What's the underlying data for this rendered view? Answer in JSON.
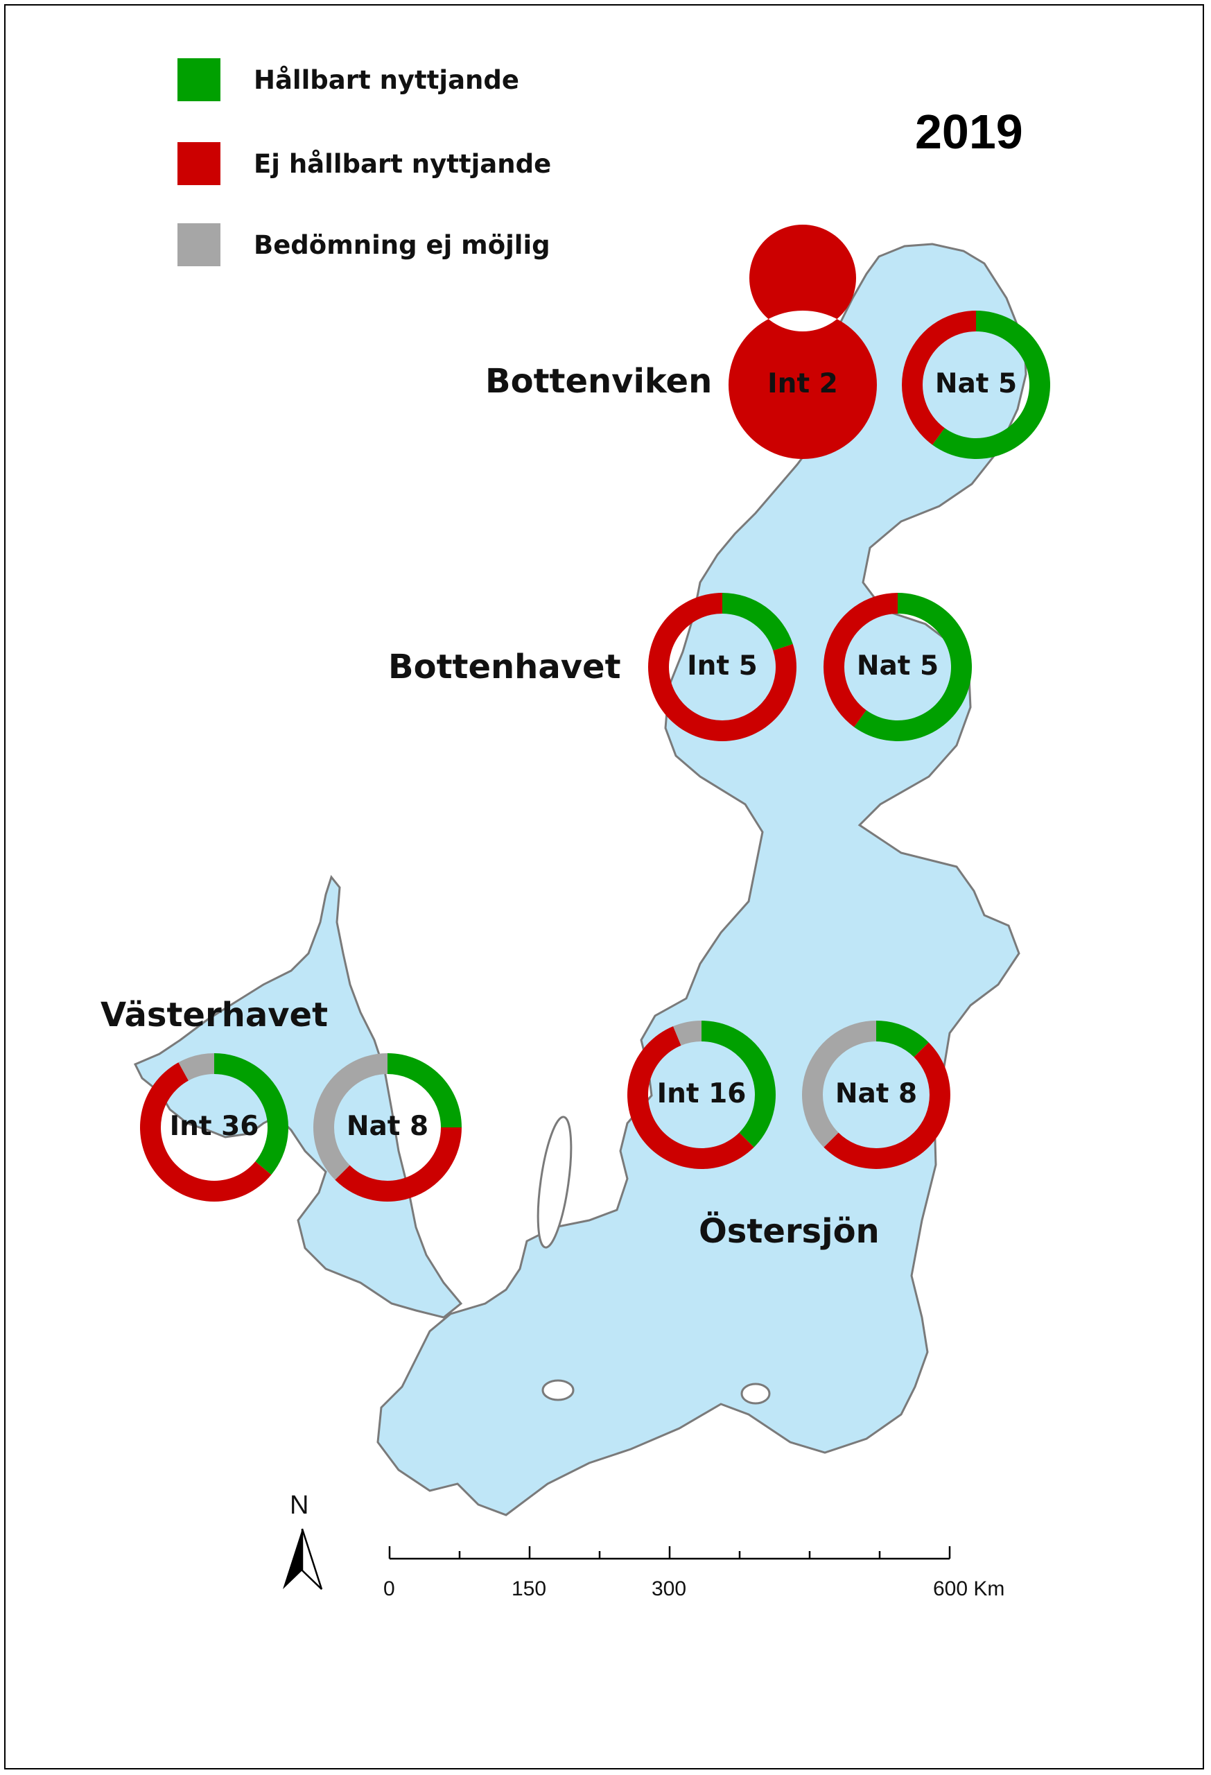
{
  "year": "2019",
  "legend": [
    {
      "label": "Hållbart nyttjande",
      "color": "#00a000"
    },
    {
      "label": "Ej hållbart nyttjande",
      "color": "#cc0000"
    },
    {
      "label": "Bedömning ej möjlig",
      "color": "#a6a6a6"
    }
  ],
  "colors": {
    "water": "#bfe6f7",
    "coast": "#7a7a7a",
    "sustainable": "#00a000",
    "unsustainable": "#cc0000",
    "not_assessed": "#a6a6a6"
  },
  "regions": {
    "bottenviken": "Bottenviken",
    "bottenhavet": "Bottenhavet",
    "vasterhavet": "Västerhavet",
    "ostersjon": "Östersjön"
  },
  "charts": [
    {
      "id": "bv-int",
      "label": "Int 2",
      "sustainable": 0.0,
      "unsustainable": 1.0,
      "not_assessed": 0.0
    },
    {
      "id": "bv-nat",
      "label": "Nat 5",
      "sustainable": 0.6,
      "unsustainable": 0.4,
      "not_assessed": 0.0
    },
    {
      "id": "bh-int",
      "label": "Int 5",
      "sustainable": 0.2,
      "unsustainable": 0.8,
      "not_assessed": 0.0
    },
    {
      "id": "bh-nat",
      "label": "Nat 5",
      "sustainable": 0.6,
      "unsustainable": 0.4,
      "not_assessed": 0.0
    },
    {
      "id": "vh-int",
      "label": "Int 36",
      "sustainable": 0.36,
      "unsustainable": 0.56,
      "not_assessed": 0.08
    },
    {
      "id": "vh-nat",
      "label": "Nat 8",
      "sustainable": 0.25,
      "unsustainable": 0.375,
      "not_assessed": 0.375
    },
    {
      "id": "os-int",
      "label": "Int 16",
      "sustainable": 0.375,
      "unsustainable": 0.5625,
      "not_assessed": 0.0625
    },
    {
      "id": "os-nat",
      "label": "Nat 8",
      "sustainable": 0.125,
      "unsustainable": 0.5,
      "not_assessed": 0.375
    }
  ],
  "north_arrow": "N",
  "scale_bar": {
    "labels": [
      "0",
      "150",
      "300",
      "600 Km"
    ]
  }
}
